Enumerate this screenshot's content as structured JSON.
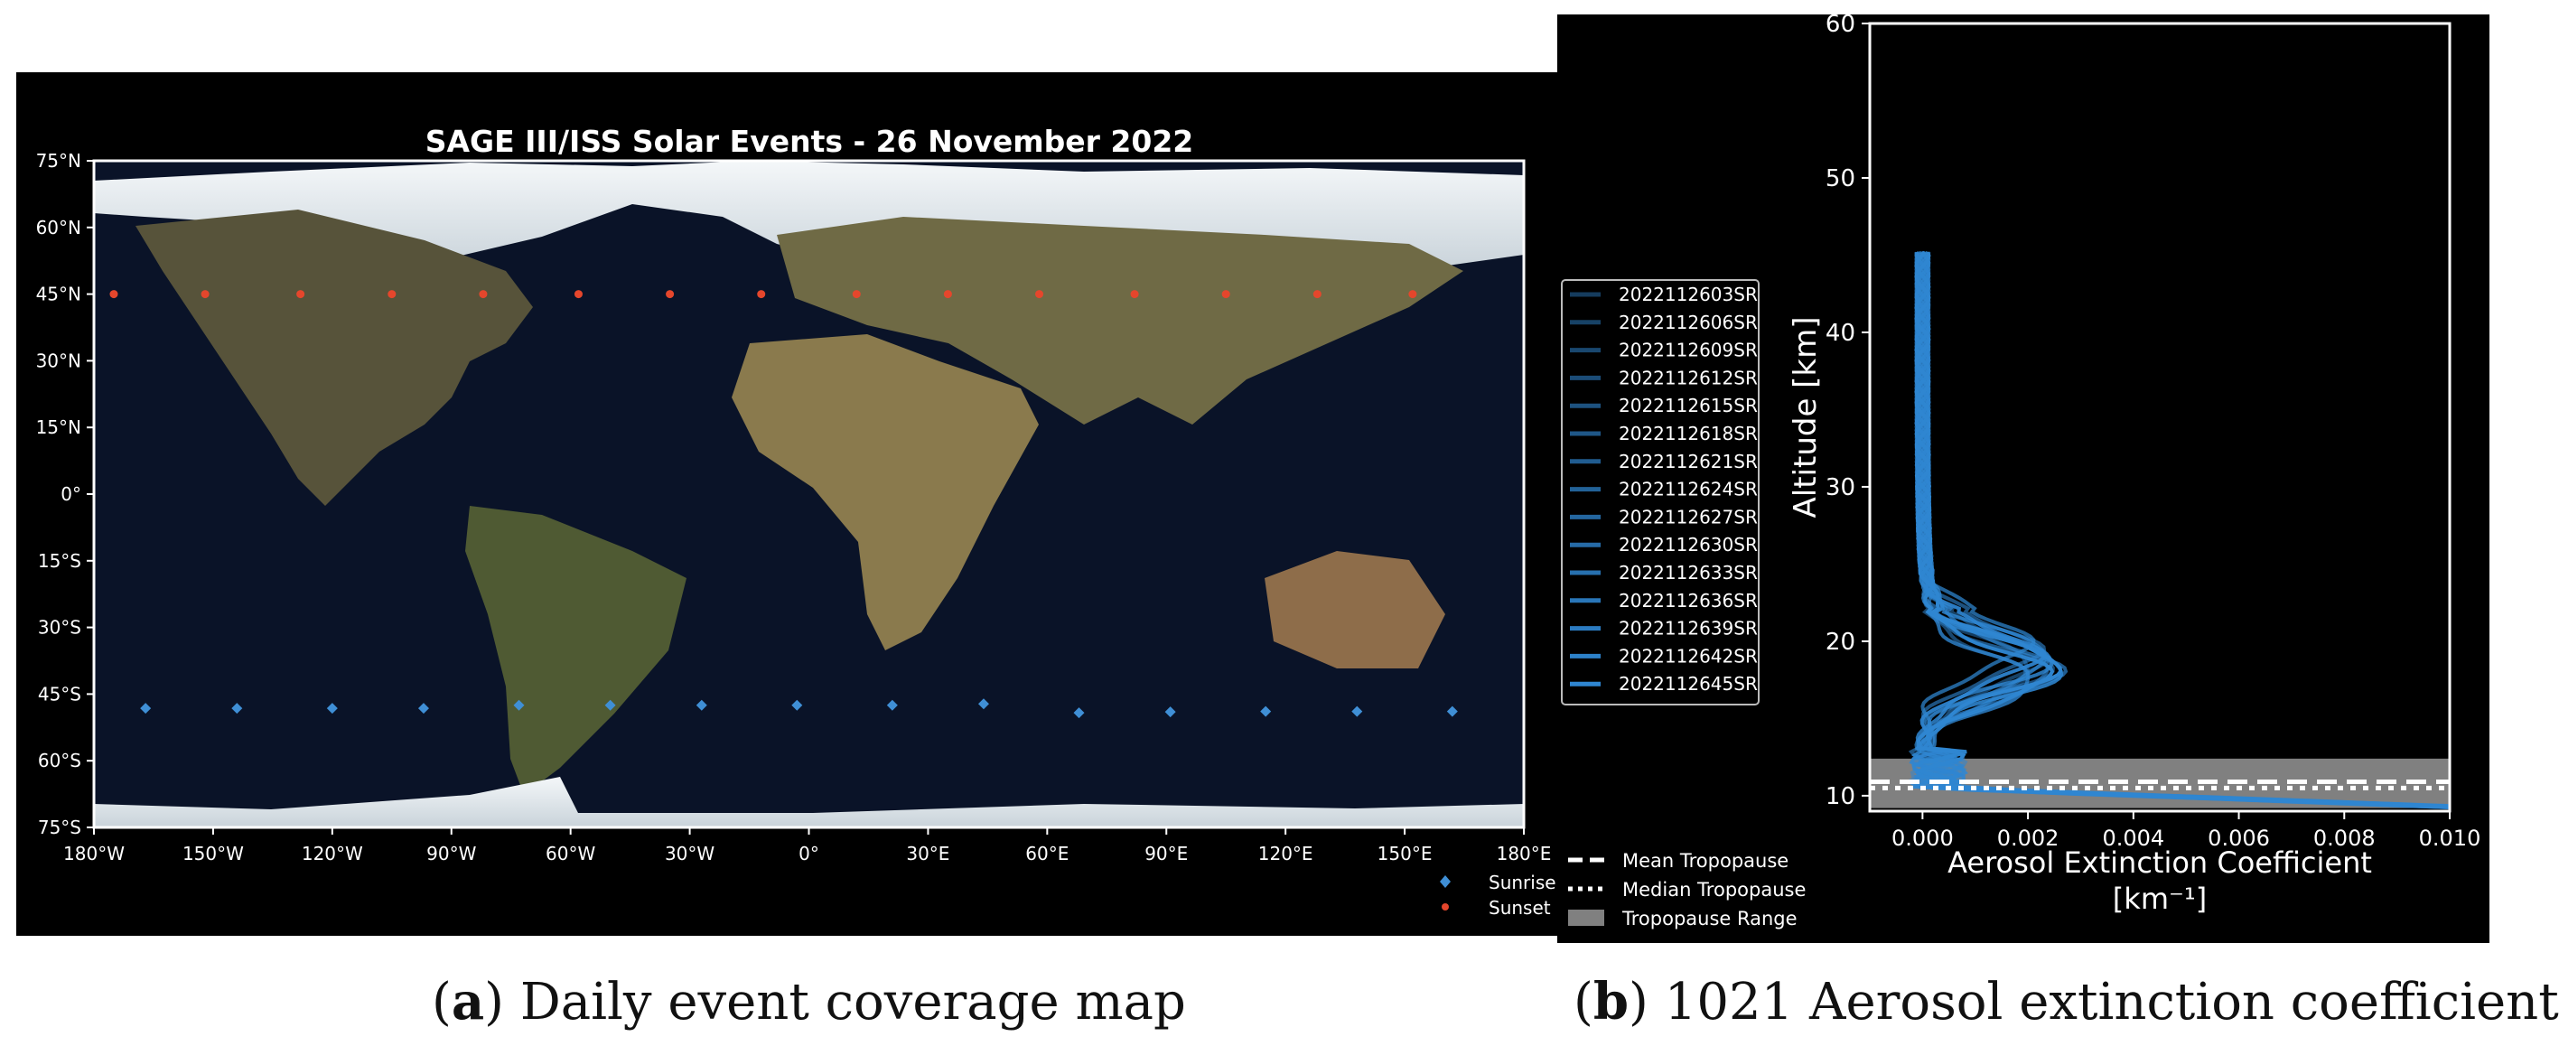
{
  "colors": {
    "ocean": "#0a1328",
    "land": "#5f5a3c",
    "ice": "#e8eef2",
    "sunrise": "#3f8fd6",
    "sunset": "#e5462c",
    "profile": "#2f86d1",
    "tropopause_band": "#808080"
  },
  "figures": {
    "a": {
      "letter": "a",
      "caption": "Daily event coverage map",
      "paren_open": "(",
      "paren_close": ")"
    },
    "b": {
      "letter": "b",
      "caption": "1021 Aerosol extinction coefficient",
      "paren_open": "(",
      "paren_close": ")"
    }
  },
  "chart_data": [
    {
      "type": "scatter",
      "title": "SAGE III/ISS Solar Events - 26 November 2022",
      "xlim": [
        -180,
        180
      ],
      "ylim": [
        -75,
        75
      ],
      "xticks": [
        -180,
        -150,
        -120,
        -90,
        -60,
        -30,
        0,
        30,
        60,
        90,
        120,
        150,
        180
      ],
      "xtick_labels": [
        "180°W",
        "150°W",
        "120°W",
        "90°W",
        "60°W",
        "30°W",
        "0°",
        "30°E",
        "60°E",
        "90°E",
        "120°E",
        "150°E",
        "180°E"
      ],
      "yticks": [
        75,
        60,
        45,
        30,
        15,
        0,
        -15,
        -30,
        -45,
        -60,
        -75
      ],
      "ytick_labels": [
        "75°N",
        "60°N",
        "45°N",
        "30°N",
        "15°N",
        "0°",
        "15°S",
        "30°S",
        "45°S",
        "60°S",
        "75°S"
      ],
      "background": "world satellite image",
      "legend_position": "bottom-right",
      "series": [
        {
          "name": "Sunrise",
          "marker": "diamond",
          "color": "#3f8fd6",
          "x": [
            -167,
            -144,
            -120,
            -97,
            -73,
            -50,
            -27,
            -3,
            21,
            44,
            68,
            91,
            115,
            138,
            162
          ],
          "y": [
            -48.2,
            -48.2,
            -48.2,
            -48.2,
            -47.5,
            -47.5,
            -47.5,
            -47.5,
            -47.5,
            -47.2,
            -49.2,
            -49.0,
            -48.9,
            -48.9,
            -48.9
          ]
        },
        {
          "name": "Sunset",
          "marker": "point",
          "color": "#e5462c",
          "x": [
            -175,
            -152,
            -128,
            -105,
            -82,
            -58,
            -35,
            -12,
            12,
            35,
            58,
            82,
            105,
            128,
            152
          ],
          "y": [
            45,
            45,
            45,
            45,
            45,
            45,
            45,
            45,
            45,
            45,
            45,
            45,
            45,
            45,
            45
          ]
        }
      ]
    },
    {
      "type": "line",
      "title": "",
      "xlabel_line1": "Aerosol Extinction Coefficient",
      "xlabel_line2": "[km⁻¹]",
      "ylabel": "Altitude [km]",
      "xlim": [
        -0.001,
        0.01
      ],
      "ylim": [
        9,
        60
      ],
      "xticks": [
        0.0,
        0.002,
        0.004,
        0.006,
        0.008,
        0.01
      ],
      "xtick_labels": [
        "0.000",
        "0.002",
        "0.004",
        "0.006",
        "0.008",
        "0.010"
      ],
      "yticks": [
        10,
        20,
        30,
        40,
        50,
        60
      ],
      "ytick_labels": [
        "10",
        "20",
        "30",
        "40",
        "50",
        "60"
      ],
      "legend_position": "left",
      "tropopause": {
        "mean": 10.9,
        "median": 10.5,
        "range": [
          9.2,
          12.4
        ],
        "mean_label": "Mean Tropopause",
        "median_label": "Median Tropopause",
        "range_label": "Tropopause Range"
      },
      "series": [
        {
          "name": "2022112603SR",
          "peak_alt": 18.3,
          "peak_val": 0.0021
        },
        {
          "name": "2022112606SR",
          "peak_alt": 18.8,
          "peak_val": 0.0023
        },
        {
          "name": "2022112609SR",
          "peak_alt": 17.7,
          "peak_val": 0.0019
        },
        {
          "name": "2022112612SR",
          "peak_alt": 18.5,
          "peak_val": 0.0025
        },
        {
          "name": "2022112615SR",
          "peak_alt": 19.4,
          "peak_val": 0.0022
        },
        {
          "name": "2022112618SR",
          "peak_alt": 17.9,
          "peak_val": 0.0024
        },
        {
          "name": "2022112621SR",
          "peak_alt": 18.1,
          "peak_val": 0.0026
        },
        {
          "name": "2022112624SR",
          "peak_alt": 19.9,
          "peak_val": 0.002
        },
        {
          "name": "2022112627SR",
          "peak_alt": 18.6,
          "peak_val": 0.0023
        },
        {
          "name": "2022112630SR",
          "peak_alt": 17.4,
          "peak_val": 0.0021
        },
        {
          "name": "2022112633SR",
          "peak_alt": 18.9,
          "peak_val": 0.0025
        },
        {
          "name": "2022112636SR",
          "peak_alt": 18.2,
          "peak_val": 0.0027
        },
        {
          "name": "2022112639SR",
          "peak_alt": 19.1,
          "peak_val": 0.0022
        },
        {
          "name": "2022112642SR",
          "peak_alt": 17.8,
          "peak_val": 0.0024
        },
        {
          "name": "2022112645SR",
          "peak_alt": 18.4,
          "peak_val": 0.0026
        }
      ],
      "profile_top_km": 45.2
    }
  ]
}
